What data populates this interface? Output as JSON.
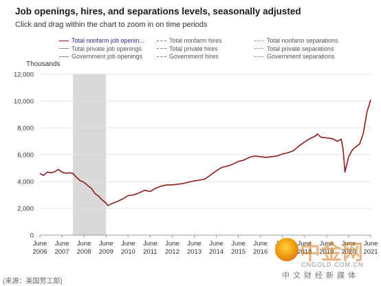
{
  "header": {
    "title": "Job openings, hires, and separations levels, seasonally adjusted",
    "subtitle": "Click and drag within the chart to zoom in on time periods"
  },
  "legend": {
    "items": [
      {
        "label": "Total nonfarm job openin...",
        "style": "solid",
        "active": true
      },
      {
        "label": "Total private job openings",
        "style": "solid-grey",
        "active": false
      },
      {
        "label": "Government job openings",
        "style": "solid-grey",
        "active": false
      },
      {
        "label": "Total nonfarm hires",
        "style": "dashed",
        "active": false
      },
      {
        "label": "Total private hires",
        "style": "dashed",
        "active": false
      },
      {
        "label": "Government hires",
        "style": "dashed",
        "active": false
      },
      {
        "label": "Total nonfarm separations",
        "style": "dotted",
        "active": false
      },
      {
        "label": "Total private separations",
        "style": "dotted",
        "active": false
      },
      {
        "label": "Government separations",
        "style": "dotted",
        "active": false
      }
    ]
  },
  "chart_data": {
    "type": "line",
    "ylabel": "Thousands",
    "ylim": [
      0,
      12000
    ],
    "yticks": [
      0,
      2000,
      4000,
      6000,
      8000,
      10000,
      12000
    ],
    "ytick_labels": [
      "0",
      "2,000",
      "4,000",
      "6,000",
      "8,000",
      "10,000",
      "12,000"
    ],
    "xlim": [
      "2006-06",
      "2021-06"
    ],
    "xticks": [
      {
        "month": "June",
        "year": "2006"
      },
      {
        "month": "June",
        "year": "2007"
      },
      {
        "month": "June",
        "year": "2008"
      },
      {
        "month": "June",
        "year": "2009"
      },
      {
        "month": "June",
        "year": "2010"
      },
      {
        "month": "June",
        "year": "2011"
      },
      {
        "month": "June",
        "year": "2012"
      },
      {
        "month": "June",
        "year": "2013"
      },
      {
        "month": "June",
        "year": "2014"
      },
      {
        "month": "June",
        "year": "2015"
      },
      {
        "month": "June",
        "year": "2016"
      },
      {
        "month": "June",
        "year": "2017"
      },
      {
        "month": "June",
        "year": "2018"
      },
      {
        "month": "June",
        "year": "2019"
      },
      {
        "month": "June",
        "year": "2020"
      },
      {
        "month": "June",
        "year": "2021"
      }
    ],
    "recession": {
      "start": "2007-12",
      "end": "2009-06",
      "color": "#d9d9d9"
    },
    "grid": true,
    "series": [
      {
        "name": "Total nonfarm job openin...",
        "color": "#8b1a1a",
        "points": [
          [
            "2006-06",
            4600
          ],
          [
            "2006-08",
            4450
          ],
          [
            "2006-10",
            4700
          ],
          [
            "2006-12",
            4650
          ],
          [
            "2007-02",
            4720
          ],
          [
            "2007-04",
            4900
          ],
          [
            "2007-06",
            4700
          ],
          [
            "2007-08",
            4620
          ],
          [
            "2007-10",
            4650
          ],
          [
            "2007-12",
            4600
          ],
          [
            "2008-02",
            4300
          ],
          [
            "2008-04",
            4050
          ],
          [
            "2008-06",
            3950
          ],
          [
            "2008-08",
            3700
          ],
          [
            "2008-10",
            3500
          ],
          [
            "2008-12",
            3100
          ],
          [
            "2009-02",
            2900
          ],
          [
            "2009-04",
            2600
          ],
          [
            "2009-06",
            2400
          ],
          [
            "2009-07",
            2200
          ],
          [
            "2009-09",
            2350
          ],
          [
            "2009-12",
            2500
          ],
          [
            "2010-03",
            2700
          ],
          [
            "2010-06",
            2950
          ],
          [
            "2010-09",
            3000
          ],
          [
            "2010-12",
            3150
          ],
          [
            "2011-03",
            3350
          ],
          [
            "2011-06",
            3250
          ],
          [
            "2011-09",
            3500
          ],
          [
            "2011-12",
            3650
          ],
          [
            "2012-03",
            3750
          ],
          [
            "2012-06",
            3750
          ],
          [
            "2012-09",
            3800
          ],
          [
            "2012-12",
            3850
          ],
          [
            "2013-03",
            3950
          ],
          [
            "2013-06",
            4050
          ],
          [
            "2013-09",
            4100
          ],
          [
            "2013-12",
            4200
          ],
          [
            "2014-03",
            4500
          ],
          [
            "2014-06",
            4800
          ],
          [
            "2014-09",
            5050
          ],
          [
            "2014-12",
            5150
          ],
          [
            "2015-03",
            5300
          ],
          [
            "2015-06",
            5500
          ],
          [
            "2015-09",
            5600
          ],
          [
            "2015-12",
            5800
          ],
          [
            "2016-03",
            5900
          ],
          [
            "2016-06",
            5850
          ],
          [
            "2016-09",
            5800
          ],
          [
            "2016-12",
            5850
          ],
          [
            "2017-03",
            5900
          ],
          [
            "2017-06",
            6050
          ],
          [
            "2017-09",
            6150
          ],
          [
            "2017-12",
            6300
          ],
          [
            "2018-03",
            6650
          ],
          [
            "2018-06",
            6950
          ],
          [
            "2018-09",
            7200
          ],
          [
            "2018-12",
            7400
          ],
          [
            "2019-01",
            7550
          ],
          [
            "2019-03",
            7300
          ],
          [
            "2019-06",
            7250
          ],
          [
            "2019-09",
            7200
          ],
          [
            "2019-12",
            7000
          ],
          [
            "2020-02",
            7150
          ],
          [
            "2020-03",
            6400
          ],
          [
            "2020-04",
            4700
          ],
          [
            "2020-06",
            5850
          ],
          [
            "2020-08",
            6350
          ],
          [
            "2020-10",
            6600
          ],
          [
            "2020-12",
            6800
          ],
          [
            "2021-02",
            7600
          ],
          [
            "2021-04",
            9200
          ],
          [
            "2021-06",
            10100
          ]
        ]
      }
    ]
  },
  "source_note": "(来源：美国劳工部)",
  "watermark": {
    "big": "中金网",
    "site": "CNGOLD.COM.CN",
    "small": "中文财经新媒体"
  }
}
